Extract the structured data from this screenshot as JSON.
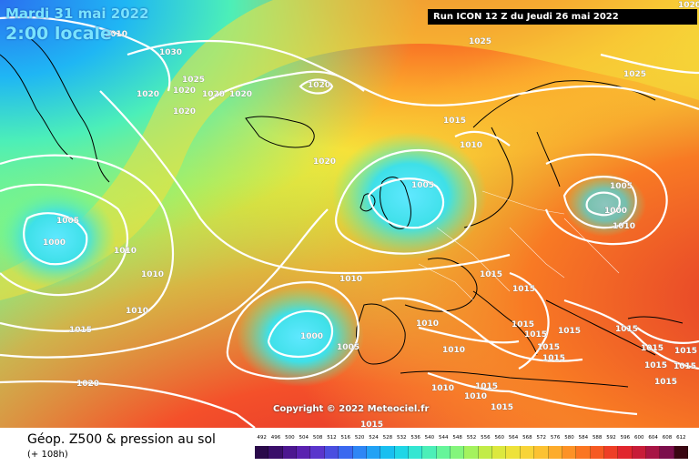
{
  "header": {
    "date": "Mardi 31 mai 2022",
    "time": "2:00 locale",
    "run": "Run ICON 12 Z du Jeudi 26 mai 2022"
  },
  "footer": {
    "product": "Géop. Z500 & pression au sol",
    "lead": "(+ 108h)",
    "copyright": "Copyright © 2022 Meteociel.fr"
  },
  "scale": {
    "labels": [
      "492",
      "496",
      "500",
      "504",
      "508",
      "512",
      "516",
      "520",
      "524",
      "528",
      "532",
      "536",
      "540",
      "544",
      "548",
      "552",
      "556",
      "560",
      "564",
      "568",
      "572",
      "576",
      "580",
      "584",
      "588",
      "592",
      "596",
      "600",
      "604",
      "608",
      "612"
    ],
    "colors": [
      "#2a0a4a",
      "#3a0f6a",
      "#4c1790",
      "#5a21b0",
      "#5a35cc",
      "#4a4ee0",
      "#3a68f0",
      "#2e86f5",
      "#22a2f5",
      "#19bff0",
      "#20d6e6",
      "#34e6d2",
      "#4cefb8",
      "#66f59a",
      "#84f57c",
      "#a4f25e",
      "#c2ec48",
      "#dce83e",
      "#eee23a",
      "#f8d438",
      "#fcc232",
      "#fdac2c",
      "#fd9226",
      "#fb7622",
      "#f65a22",
      "#ee3e26",
      "#e1262e",
      "#c81c38",
      "#a81444",
      "#7c0f4c",
      "#3a0612"
    ]
  },
  "isobar_labels": [
    {
      "text": "1010"
    },
    {
      "text": "1030"
    },
    {
      "text": "1025"
    },
    {
      "text": "1020"
    },
    {
      "text": "1020"
    },
    {
      "text": "1020"
    },
    {
      "text": "1020"
    },
    {
      "text": "1020"
    },
    {
      "text": "1020"
    },
    {
      "text": "1025"
    },
    {
      "text": "1025"
    },
    {
      "text": "1015"
    },
    {
      "text": "1010"
    },
    {
      "text": "1020"
    },
    {
      "text": "1005"
    },
    {
      "text": "1005"
    },
    {
      "text": "1000"
    },
    {
      "text": "1010"
    },
    {
      "text": "1010"
    },
    {
      "text": "1010"
    },
    {
      "text": "1005"
    },
    {
      "text": "1000"
    },
    {
      "text": "1010"
    },
    {
      "text": "1005"
    },
    {
      "text": "1000"
    },
    {
      "text": "1010"
    },
    {
      "text": "1015"
    },
    {
      "text": "1015"
    },
    {
      "text": "1015"
    },
    {
      "text": "1015"
    },
    {
      "text": "1015"
    },
    {
      "text": "1010"
    },
    {
      "text": "1010"
    },
    {
      "text": "1015"
    },
    {
      "text": "1015"
    },
    {
      "text": "1015"
    },
    {
      "text": "1015"
    },
    {
      "text": "1015"
    },
    {
      "text": "1015"
    },
    {
      "text": "1015"
    },
    {
      "text": "1015"
    },
    {
      "text": "1015"
    },
    {
      "text": "1020"
    },
    {
      "text": "1010"
    },
    {
      "text": "1010"
    },
    {
      "text": "1015"
    },
    {
      "text": "1015"
    },
    {
      "text": "1015"
    },
    {
      "text": "1020"
    }
  ]
}
